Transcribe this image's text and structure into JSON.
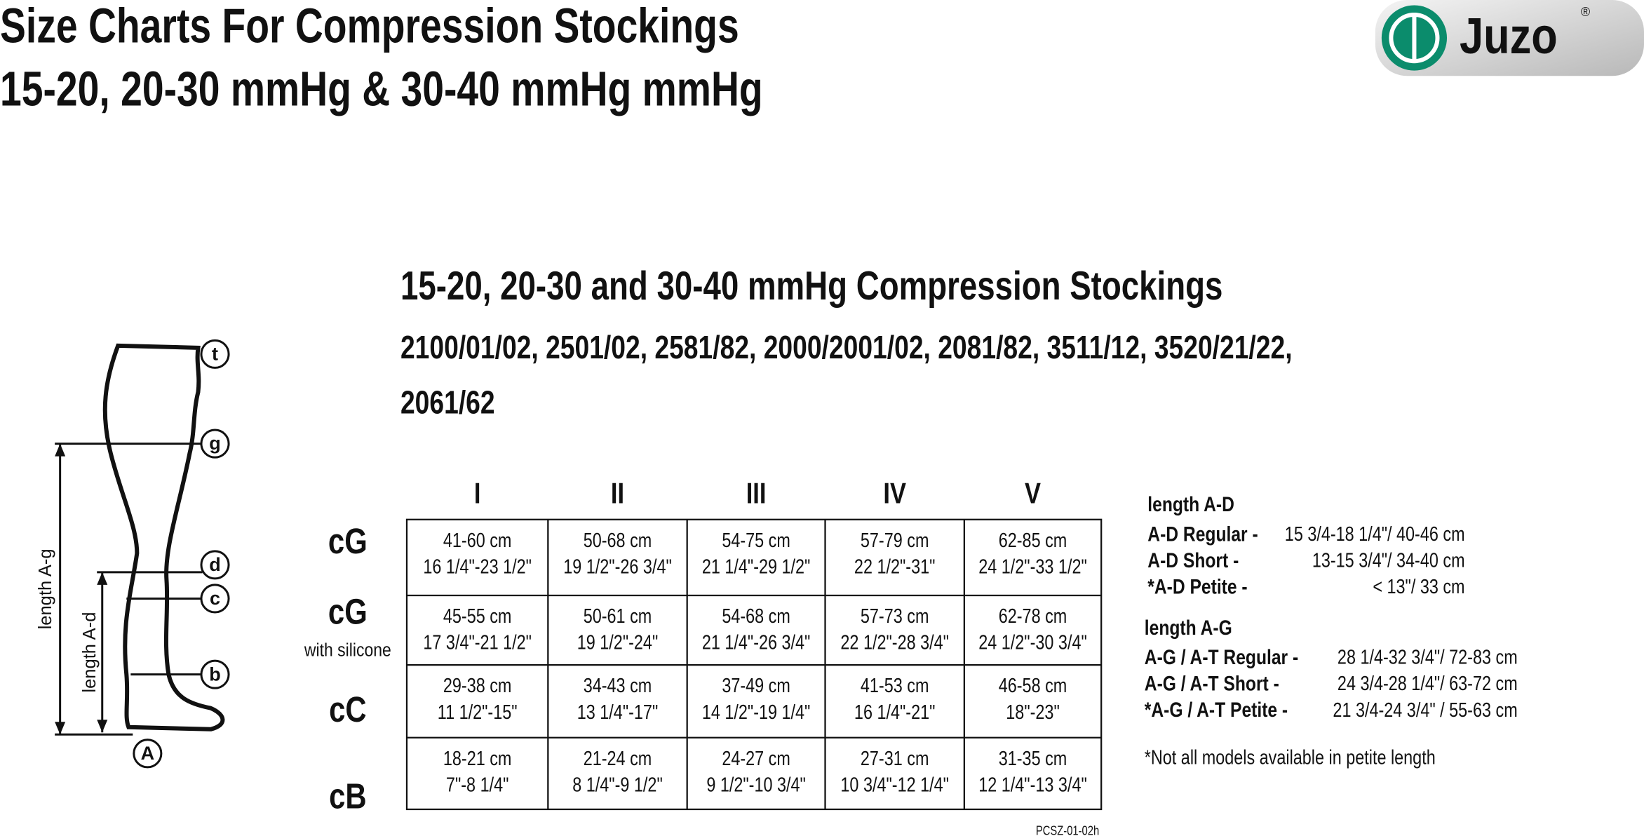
{
  "header": {
    "title_lines": [
      "Size Charts For Compression Stockings",
      "15-20, 20-30 mmHg & 30-40 mmHg mmHg"
    ],
    "logo": "Juzo",
    "logo_mark": "®"
  },
  "section": {
    "heading": "15-20, 20-30 and 30-40 mmHg Compression Stockings",
    "models": [
      "2100/01/02, 2501/02, 2581/82, 2000/2001/02, 2081/82, 3511/12, 3520/21/22,",
      "2061/62"
    ]
  },
  "diagram": {
    "points": [
      "t",
      "g",
      "d",
      "c",
      "b",
      "A"
    ],
    "length_ag": "length A-g",
    "length_ad": "length A-d"
  },
  "table": {
    "columns": [
      "I",
      "II",
      "III",
      "IV",
      "V"
    ],
    "rows": [
      {
        "label": "cG",
        "cells": [
          [
            "41-60 cm",
            "16 1/4\"-23 1/2\""
          ],
          [
            "50-68 cm",
            "19 1/2\"-26 3/4\""
          ],
          [
            "54-75 cm",
            "21 1/4\"-29 1/2\""
          ],
          [
            "57-79 cm",
            "22 1/2\"-31\""
          ],
          [
            "62-85 cm",
            "24 1/2\"-33 1/2\""
          ]
        ]
      },
      {
        "label": "cG",
        "note": "with silicone",
        "cells": [
          [
            "45-55 cm",
            "17 3/4\"-21 1/2\""
          ],
          [
            "50-61 cm",
            "19 1/2\"-24\""
          ],
          [
            "54-68 cm",
            "21 1/4\"-26 3/4\""
          ],
          [
            "57-73 cm",
            "22 1/2\"-28 3/4\""
          ],
          [
            "62-78 cm",
            "24 1/2\"-30 3/4\""
          ]
        ]
      },
      {
        "label": "cC",
        "cells": [
          [
            "29-38 cm",
            "11 1/2\"-15\""
          ],
          [
            "34-43 cm",
            "13 1/4\"-17\""
          ],
          [
            "37-49 cm",
            "14 1/2\"-19 1/4\""
          ],
          [
            "41-53 cm",
            "16 1/4\"-21\""
          ],
          [
            "46-58 cm",
            "18\"-23\""
          ]
        ]
      },
      {
        "label": "cB",
        "cells": [
          [
            "18-21 cm",
            "7\"-8 1/4\""
          ],
          [
            "21-24 cm",
            "8 1/4\"-9 1/2\""
          ],
          [
            "24-27 cm",
            "9 1/2\"-10 3/4\""
          ],
          [
            "27-31 cm",
            "10 3/4\"-12 1/4\""
          ],
          [
            "31-35 cm",
            "12 1/4\"-13 3/4\""
          ]
        ]
      }
    ]
  },
  "lengths": [
    {
      "title": "length A-D",
      "rows": [
        [
          "A-D Regular -",
          "15 3/4-18 1/4\"/ 40-46 cm"
        ],
        [
          "A-D Short -",
          "13-15 3/4\"/ 34-40 cm"
        ],
        [
          "*A-D Petite -",
          "< 13\"/ 33 cm"
        ]
      ]
    },
    {
      "title": "length A-G",
      "rows": [
        [
          "A-G / A-T Regular -",
          "28 1/4-32 3/4\"/ 72-83 cm"
        ],
        [
          "A-G / A-T Short -",
          "24 3/4-28 1/4\"/ 63-72 cm"
        ],
        [
          "*A-G / A-T Petite -",
          "21 3/4-24 3/4\" / 55-63 cm"
        ]
      ]
    }
  ],
  "footnote": "*Not all models available in petite length",
  "code": "PCSZ-01-02h"
}
